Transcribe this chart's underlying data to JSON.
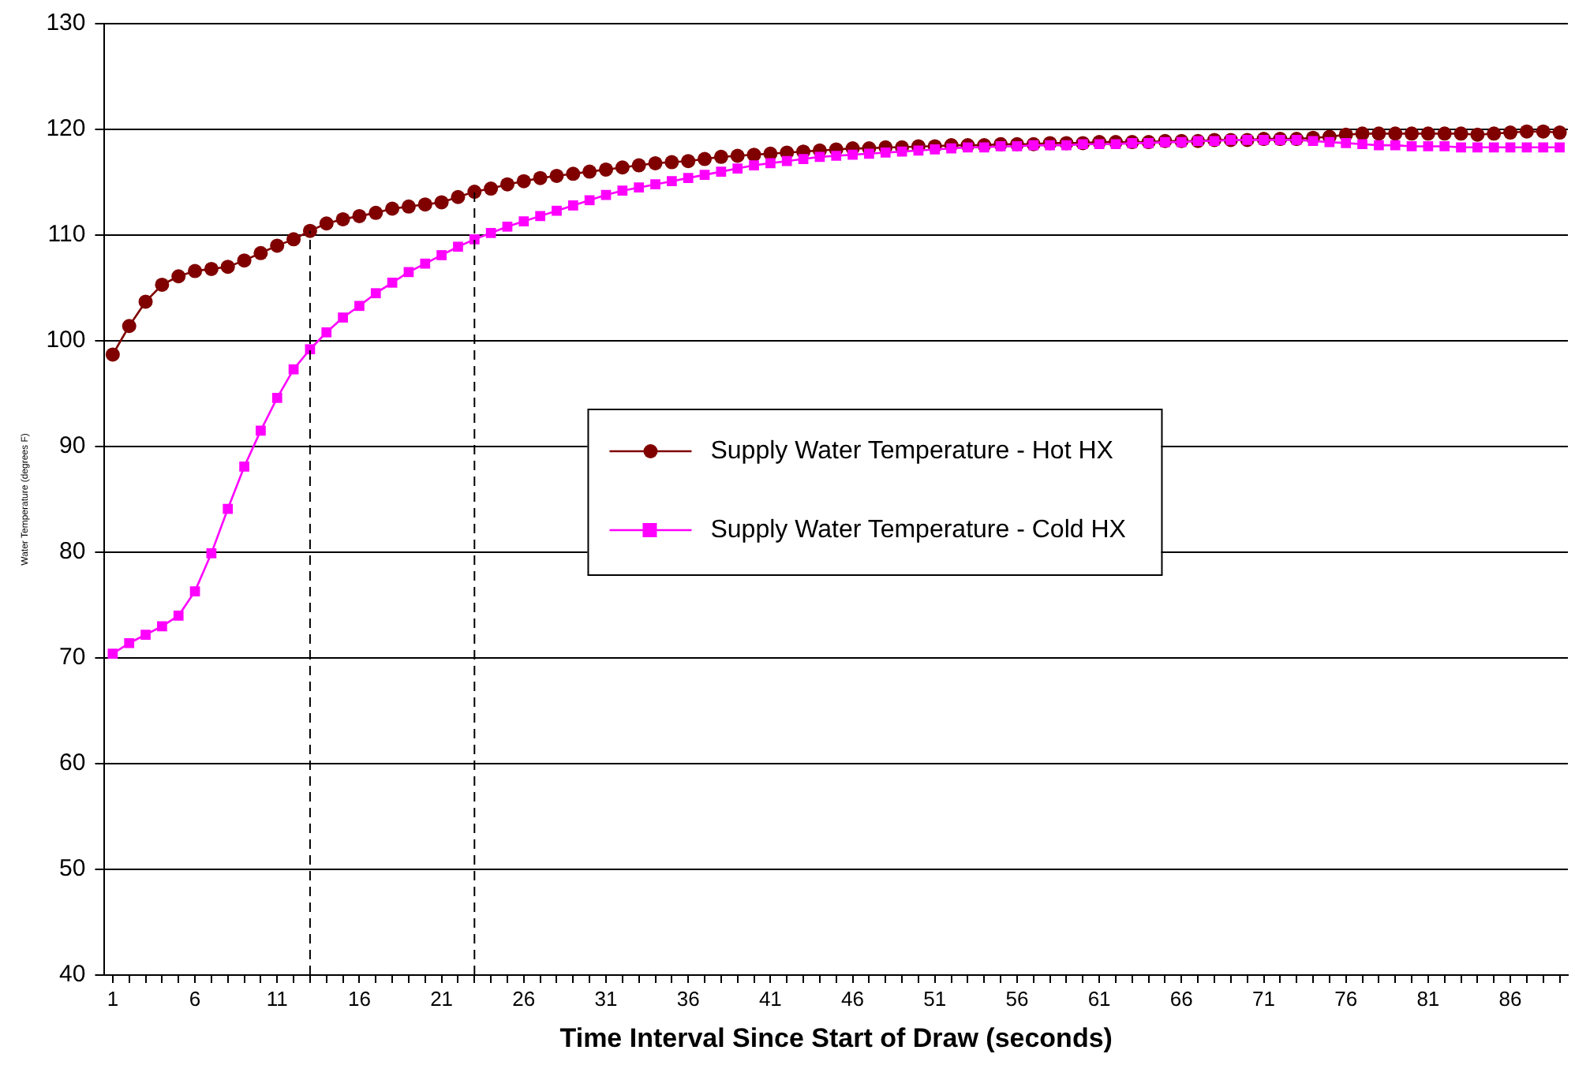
{
  "chart_data": {
    "type": "line",
    "xlabel": "Time Interval Since Start of Draw (seconds)",
    "ylabel": "Water Temperature (degrees F)",
    "x": [
      1,
      2,
      3,
      4,
      5,
      6,
      7,
      8,
      9,
      10,
      11,
      12,
      13,
      14,
      15,
      16,
      17,
      18,
      19,
      20,
      21,
      22,
      23,
      24,
      25,
      26,
      27,
      28,
      29,
      30,
      31,
      32,
      33,
      34,
      35,
      36,
      37,
      38,
      39,
      40,
      41,
      42,
      43,
      44,
      45,
      46,
      47,
      48,
      49,
      50,
      51,
      52,
      53,
      54,
      55,
      56,
      57,
      58,
      59,
      60,
      61,
      62,
      63,
      64,
      65,
      66,
      67,
      68,
      69,
      70,
      71,
      72,
      73,
      74,
      75,
      76,
      77,
      78,
      79,
      80,
      81,
      82,
      83,
      84,
      85,
      86,
      87,
      88,
      89
    ],
    "xlim": [
      0.5,
      89.5
    ],
    "xticks": [
      1,
      {
        "value": 2,
        "label": null
      },
      {
        "value": 3,
        "label": null
      },
      {
        "value": 4,
        "label": null
      },
      {
        "value": 5,
        "label": null
      },
      6,
      {
        "value": 7,
        "label": null
      },
      {
        "value": 8,
        "label": null
      },
      {
        "value": 9,
        "label": null
      },
      {
        "value": 10,
        "label": null
      },
      11,
      {
        "value": 12,
        "label": null
      },
      {
        "value": 13,
        "label": null
      },
      {
        "value": 14,
        "label": null
      },
      {
        "value": 15,
        "label": null
      },
      16,
      {
        "value": 17,
        "label": null
      },
      {
        "value": 18,
        "label": null
      },
      {
        "value": 19,
        "label": null
      },
      {
        "value": 20,
        "label": null
      },
      21,
      {
        "value": 22,
        "label": null
      },
      {
        "value": 23,
        "label": null
      },
      {
        "value": 24,
        "label": null
      },
      {
        "value": 25,
        "label": null
      },
      26,
      {
        "value": 27,
        "label": null
      },
      {
        "value": 28,
        "label": null
      },
      {
        "value": 29,
        "label": null
      },
      {
        "value": 30,
        "label": null
      },
      31,
      {
        "value": 32,
        "label": null
      },
      {
        "value": 33,
        "label": null
      },
      {
        "value": 34,
        "label": null
      },
      {
        "value": 35,
        "label": null
      },
      36,
      {
        "value": 37,
        "label": null
      },
      {
        "value": 38,
        "label": null
      },
      {
        "value": 39,
        "label": null
      },
      {
        "value": 40,
        "label": null
      },
      41,
      {
        "value": 42,
        "label": null
      },
      {
        "value": 43,
        "label": null
      },
      {
        "value": 44,
        "label": null
      },
      {
        "value": 45,
        "label": null
      },
      46,
      {
        "value": 47,
        "label": null
      },
      {
        "value": 48,
        "label": null
      },
      {
        "value": 49,
        "label": null
      },
      {
        "value": 50,
        "label": null
      },
      51,
      {
        "value": 52,
        "label": null
      },
      {
        "value": 53,
        "label": null
      },
      {
        "value": 54,
        "label": null
      },
      {
        "value": 55,
        "label": null
      },
      56,
      {
        "value": 57,
        "label": null
      },
      {
        "value": 58,
        "label": null
      },
      {
        "value": 59,
        "label": null
      },
      {
        "value": 60,
        "label": null
      },
      61,
      {
        "value": 62,
        "label": null
      },
      {
        "value": 63,
        "label": null
      },
      {
        "value": 64,
        "label": null
      },
      {
        "value": 65,
        "label": null
      },
      66,
      {
        "value": 67,
        "label": null
      },
      {
        "value": 68,
        "label": null
      },
      {
        "value": 69,
        "label": null
      },
      {
        "value": 70,
        "label": null
      },
      71,
      {
        "value": 72,
        "label": null
      },
      {
        "value": 73,
        "label": null
      },
      {
        "value": 74,
        "label": null
      },
      {
        "value": 75,
        "label": null
      },
      76,
      {
        "value": 77,
        "label": null
      },
      {
        "value": 78,
        "label": null
      },
      {
        "value": 79,
        "label": null
      },
      {
        "value": 80,
        "label": null
      },
      81,
      {
        "value": 82,
        "label": null
      },
      {
        "value": 83,
        "label": null
      },
      {
        "value": 84,
        "label": null
      },
      {
        "value": 85,
        "label": null
      },
      86,
      {
        "value": 87,
        "label": null
      },
      {
        "value": 88,
        "label": null
      },
      {
        "value": 89,
        "label": null
      }
    ],
    "series": [
      {
        "name": "Supply Water Temperature - Hot HX",
        "color": "#800000",
        "marker": "circle",
        "values": [
          98.7,
          101.4,
          103.7,
          105.3,
          106.1,
          106.6,
          106.8,
          107.0,
          107.6,
          108.3,
          109.0,
          109.6,
          110.4,
          111.1,
          111.5,
          111.8,
          112.1,
          112.5,
          112.7,
          112.9,
          113.1,
          113.6,
          114.1,
          114.4,
          114.8,
          115.1,
          115.4,
          115.6,
          115.8,
          116.0,
          116.2,
          116.4,
          116.6,
          116.8,
          116.9,
          117.0,
          117.2,
          117.4,
          117.5,
          117.6,
          117.7,
          117.8,
          117.9,
          118.0,
          118.1,
          118.2,
          118.2,
          118.3,
          118.3,
          118.4,
          118.4,
          118.5,
          118.5,
          118.5,
          118.6,
          118.6,
          118.6,
          118.7,
          118.7,
          118.7,
          118.8,
          118.8,
          118.8,
          118.8,
          118.9,
          118.9,
          118.9,
          119.0,
          119.0,
          119.0,
          119.1,
          119.1,
          119.1,
          119.2,
          119.3,
          119.5,
          119.6,
          119.6,
          119.6,
          119.6,
          119.6,
          119.6,
          119.6,
          119.5,
          119.6,
          119.7,
          119.8,
          119.8,
          119.7
        ]
      },
      {
        "name": "Supply Water Temperature - Cold HX",
        "color": "#ff00ff",
        "marker": "square",
        "values": [
          70.4,
          71.4,
          72.2,
          73.0,
          74.0,
          76.3,
          79.9,
          84.1,
          88.1,
          91.5,
          94.6,
          97.3,
          99.2,
          100.8,
          102.2,
          103.3,
          104.5,
          105.5,
          106.5,
          107.3,
          108.1,
          108.9,
          109.6,
          110.2,
          110.8,
          111.3,
          111.8,
          112.3,
          112.8,
          113.3,
          113.8,
          114.2,
          114.5,
          114.8,
          115.1,
          115.4,
          115.7,
          116.0,
          116.3,
          116.6,
          116.8,
          117.0,
          117.2,
          117.4,
          117.5,
          117.6,
          117.7,
          117.8,
          117.9,
          118.0,
          118.1,
          118.2,
          118.3,
          118.3,
          118.4,
          118.4,
          118.5,
          118.5,
          118.5,
          118.6,
          118.6,
          118.6,
          118.7,
          118.7,
          118.8,
          118.8,
          118.9,
          118.9,
          119.0,
          119.0,
          119.0,
          119.0,
          119.0,
          118.9,
          118.8,
          118.7,
          118.6,
          118.5,
          118.5,
          118.4,
          118.4,
          118.4,
          118.3,
          118.3,
          118.3,
          118.3,
          118.3,
          118.3,
          118.3
        ]
      }
    ],
    "ylim": [
      40,
      130
    ],
    "yticks": [
      40,
      50,
      60,
      70,
      80,
      90,
      100,
      110,
      120,
      130
    ],
    "grid": "y",
    "legend": "center",
    "ref_lines": [
      {
        "axis": "x",
        "value": 13,
        "color": "#000000",
        "line_style": "dashed"
      },
      {
        "axis": "x",
        "value": 23,
        "color": "#000000",
        "line_style": "dashed"
      }
    ]
  }
}
